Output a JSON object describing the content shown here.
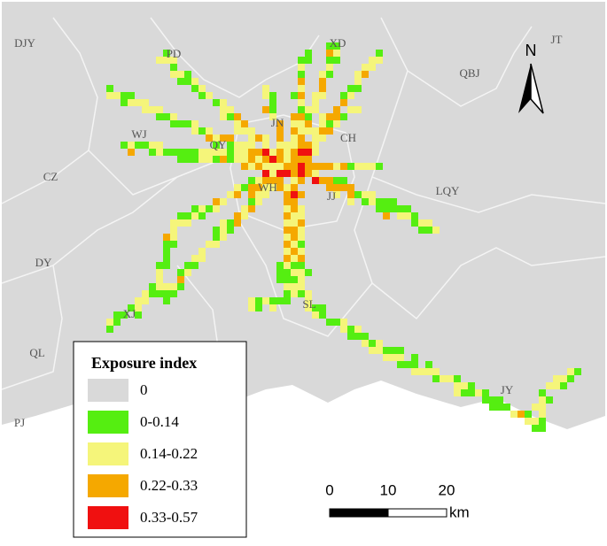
{
  "map_labels": [
    "DJY",
    "PD",
    "XD",
    "JT",
    "QBJ",
    "WJ",
    "JN",
    "QY",
    "CH",
    "CZ",
    "WH",
    "JJ",
    "LQY",
    "DY",
    "SL",
    "XJ",
    "QL",
    "JY",
    "PJ"
  ],
  "north": "N",
  "legend": {
    "title": "Exposure index",
    "items": [
      {
        "label": "0",
        "color": "#d9d9d9"
      },
      {
        "label": "0-0.14",
        "color": "#55ee11"
      },
      {
        "label": "0.14-0.22",
        "color": "#f5f57a"
      },
      {
        "label": "0.22-0.33",
        "color": "#f5a800"
      },
      {
        "label": "0.33-0.57",
        "color": "#f01010"
      }
    ]
  },
  "scale": {
    "ticks": [
      0,
      10,
      20
    ],
    "unit": "km"
  }
}
